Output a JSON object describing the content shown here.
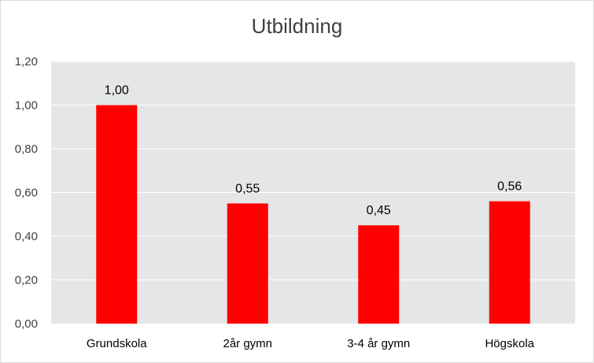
{
  "chart_data": {
    "type": "bar",
    "title": "Utbildning",
    "categories": [
      "Grundskola",
      "2år gymn",
      "3-4 år gymn",
      "Högskola"
    ],
    "values": [
      1.0,
      0.55,
      0.45,
      0.56
    ],
    "value_labels": [
      "1,00",
      "0,55",
      "0,45",
      "0,56"
    ],
    "yticks": [
      "0,00",
      "0,20",
      "0,40",
      "0,60",
      "0,80",
      "1,00",
      "1,20"
    ],
    "ylim": [
      0,
      1.2
    ],
    "grid": true,
    "legend": "none",
    "bar_color": "#ff0000",
    "plot_background": "#e4e6e7",
    "grid_color": "#ffffff"
  }
}
